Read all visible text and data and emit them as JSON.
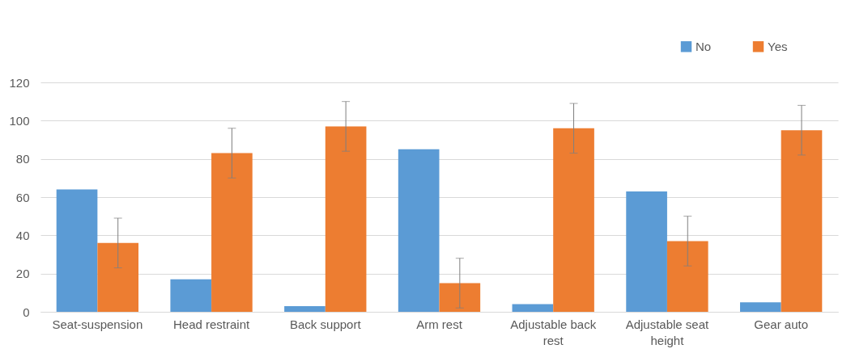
{
  "chart_data": {
    "type": "bar",
    "categories": [
      "Seat-suspension",
      "Head restraint",
      "Back support",
      "Arm rest",
      "Adjustable back rest",
      "Adjustable seat height",
      "Gear auto"
    ],
    "series": [
      {
        "name": "No",
        "color": "#5b9bd5",
        "values": [
          64,
          17,
          3,
          85,
          4,
          63,
          5
        ]
      },
      {
        "name": "Yes",
        "color": "#ed7d31",
        "values": [
          36,
          83,
          97,
          15,
          96,
          37,
          95
        ],
        "errors": [
          13,
          13,
          13,
          13,
          13,
          13,
          13
        ]
      }
    ],
    "ylim": [
      0,
      120
    ],
    "yticks": [
      0,
      20,
      40,
      60,
      80,
      100,
      120
    ],
    "grid": "y",
    "legend": "top right"
  }
}
